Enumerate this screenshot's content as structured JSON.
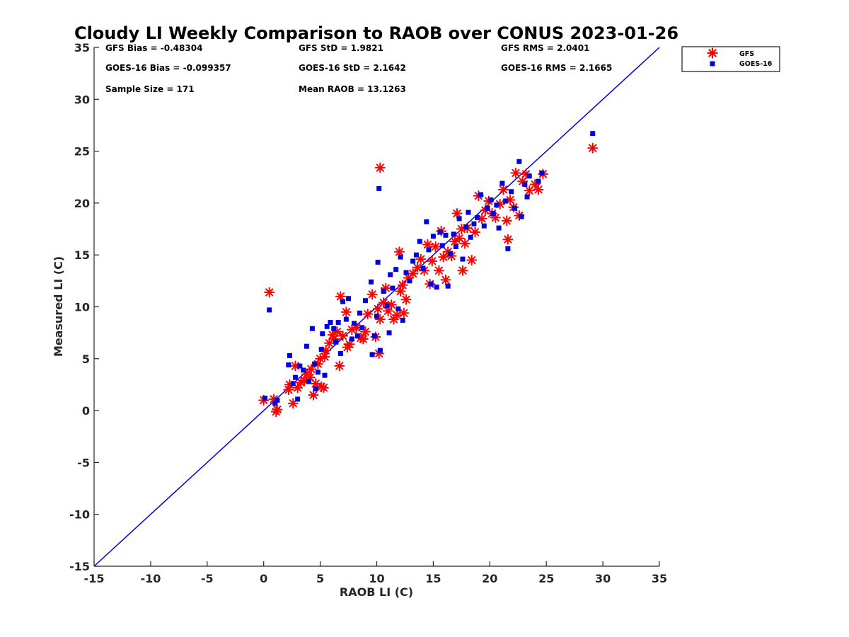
{
  "chart_data": {
    "type": "scatter",
    "title": "Cloudy LI Weekly Comparison to RAOB over CONUS 2023-01-26",
    "xlabel": "RAOB LI (C)",
    "ylabel": "Measured LI (C)",
    "xlim": [
      -15,
      35
    ],
    "ylim": [
      -15,
      35
    ],
    "xticks": [
      -15,
      -10,
      -5,
      0,
      5,
      10,
      15,
      20,
      25,
      30,
      35
    ],
    "yticks": [
      -15,
      -10,
      -5,
      0,
      5,
      10,
      15,
      20,
      25,
      30,
      35
    ],
    "xtick_labels": [
      "-15",
      "-10",
      "-5",
      "0",
      "5",
      "10",
      "15",
      "20",
      "25",
      "30",
      "35"
    ],
    "ytick_labels": [
      "-15",
      "-10",
      "-5",
      "0",
      "5",
      "10",
      "15",
      "20",
      "25",
      "30",
      "35"
    ],
    "grid": false,
    "legend_position": "top-right, outside plot area",
    "reference_line": {
      "type": "one-to-one",
      "color": "#0000dd"
    },
    "stats": [
      "GFS Bias = -0.48304",
      "GFS StD = 1.9821",
      "GFS RMS = 2.0401",
      "GOES-16 Bias = -0.099357",
      "GOES-16 StD = 2.1642",
      "GOES-16 RMS = 2.1665",
      "Sample Size = 171",
      "Mean RAOB = 13.1263"
    ],
    "series": [
      {
        "name": "GFS",
        "marker": "asterisk",
        "color": "#ff0000",
        "points": [
          [
            0.0,
            1.0
          ],
          [
            0.5,
            11.4
          ],
          [
            0.9,
            1.1
          ],
          [
            1.1,
            -0.1
          ],
          [
            1.2,
            0.1
          ],
          [
            2.2,
            2.0
          ],
          [
            2.3,
            2.5
          ],
          [
            2.6,
            0.7
          ],
          [
            2.8,
            4.3
          ],
          [
            3.0,
            2.2
          ],
          [
            3.3,
            2.7
          ],
          [
            3.6,
            2.9
          ],
          [
            3.8,
            3.5
          ],
          [
            4.1,
            3.2
          ],
          [
            4.2,
            4.0
          ],
          [
            4.4,
            1.5
          ],
          [
            4.6,
            2.6
          ],
          [
            4.8,
            4.5
          ],
          [
            5.0,
            5.0
          ],
          [
            5.1,
            2.3
          ],
          [
            5.3,
            2.2
          ],
          [
            5.4,
            5.2
          ],
          [
            5.5,
            5.8
          ],
          [
            5.8,
            6.5
          ],
          [
            6.1,
            7.3
          ],
          [
            6.2,
            6.9
          ],
          [
            6.5,
            7.6
          ],
          [
            6.7,
            4.3
          ],
          [
            6.8,
            11.0
          ],
          [
            7.0,
            7.2
          ],
          [
            7.3,
            9.5
          ],
          [
            7.4,
            6.1
          ],
          [
            7.6,
            6.4
          ],
          [
            7.8,
            7.8
          ],
          [
            8.2,
            8.0
          ],
          [
            8.6,
            7.0
          ],
          [
            8.8,
            6.9
          ],
          [
            9.0,
            7.6
          ],
          [
            9.2,
            9.3
          ],
          [
            9.6,
            11.2
          ],
          [
            9.9,
            7.1
          ],
          [
            10.1,
            9.8
          ],
          [
            10.2,
            5.5
          ],
          [
            10.3,
            8.8
          ],
          [
            10.3,
            23.4
          ],
          [
            10.6,
            10.4
          ],
          [
            10.8,
            11.8
          ],
          [
            11.0,
            9.6
          ],
          [
            11.3,
            10.2
          ],
          [
            11.5,
            8.8
          ],
          [
            11.8,
            9.2
          ],
          [
            12.0,
            15.3
          ],
          [
            12.1,
            11.5
          ],
          [
            12.3,
            12.1
          ],
          [
            12.4,
            9.4
          ],
          [
            12.6,
            10.7
          ],
          [
            12.8,
            12.8
          ],
          [
            13.2,
            13.2
          ],
          [
            13.6,
            13.8
          ],
          [
            13.9,
            14.6
          ],
          [
            14.2,
            13.5
          ],
          [
            14.5,
            16.0
          ],
          [
            14.7,
            12.2
          ],
          [
            14.9,
            14.4
          ],
          [
            15.2,
            15.8
          ],
          [
            15.5,
            13.5
          ],
          [
            15.7,
            17.3
          ],
          [
            15.9,
            14.8
          ],
          [
            16.1,
            12.6
          ],
          [
            16.3,
            15.3
          ],
          [
            16.6,
            14.9
          ],
          [
            16.9,
            16.3
          ],
          [
            17.1,
            19.0
          ],
          [
            17.3,
            16.6
          ],
          [
            17.5,
            17.5
          ],
          [
            17.6,
            13.5
          ],
          [
            17.8,
            16.1
          ],
          [
            18.0,
            17.6
          ],
          [
            18.4,
            14.5
          ],
          [
            18.7,
            17.2
          ],
          [
            19.0,
            20.7
          ],
          [
            19.3,
            18.5
          ],
          [
            19.6,
            19.3
          ],
          [
            19.9,
            20.2
          ],
          [
            20.2,
            19.0
          ],
          [
            20.5,
            18.6
          ],
          [
            20.9,
            19.9
          ],
          [
            21.2,
            21.3
          ],
          [
            21.5,
            18.3
          ],
          [
            21.6,
            16.5
          ],
          [
            21.8,
            20.3
          ],
          [
            22.1,
            19.6
          ],
          [
            22.3,
            22.9
          ],
          [
            22.6,
            18.8
          ],
          [
            22.9,
            22.1
          ],
          [
            23.2,
            22.8
          ],
          [
            23.5,
            21.2
          ],
          [
            24.0,
            21.8
          ],
          [
            24.3,
            21.3
          ],
          [
            24.7,
            22.8
          ],
          [
            29.1,
            25.3
          ]
        ]
      },
      {
        "name": "GOES-16",
        "marker": "square",
        "color": "#0000dd",
        "points": [
          [
            0.1,
            1.2
          ],
          [
            0.5,
            9.7
          ],
          [
            1.0,
            0.7
          ],
          [
            1.2,
            1.0
          ],
          [
            2.2,
            4.4
          ],
          [
            2.3,
            5.3
          ],
          [
            2.6,
            2.6
          ],
          [
            2.8,
            3.2
          ],
          [
            3.0,
            1.1
          ],
          [
            3.2,
            4.3
          ],
          [
            3.5,
            3.9
          ],
          [
            3.8,
            6.2
          ],
          [
            4.0,
            2.8
          ],
          [
            4.3,
            7.9
          ],
          [
            4.5,
            4.5
          ],
          [
            4.6,
            2.1
          ],
          [
            4.8,
            3.7
          ],
          [
            5.1,
            5.9
          ],
          [
            5.2,
            7.4
          ],
          [
            5.4,
            3.4
          ],
          [
            5.6,
            8.1
          ],
          [
            5.9,
            8.5
          ],
          [
            6.2,
            7.9
          ],
          [
            6.4,
            6.6
          ],
          [
            6.6,
            8.5
          ],
          [
            6.8,
            5.5
          ],
          [
            7.0,
            10.5
          ],
          [
            7.3,
            8.8
          ],
          [
            7.5,
            10.8
          ],
          [
            7.8,
            6.9
          ],
          [
            8.0,
            8.4
          ],
          [
            8.3,
            7.2
          ],
          [
            8.5,
            9.4
          ],
          [
            8.7,
            8.0
          ],
          [
            9.0,
            10.6
          ],
          [
            9.5,
            12.4
          ],
          [
            9.6,
            5.4
          ],
          [
            9.8,
            7.2
          ],
          [
            10.0,
            9.1
          ],
          [
            10.1,
            14.3
          ],
          [
            10.2,
            21.4
          ],
          [
            10.3,
            5.8
          ],
          [
            10.6,
            11.5
          ],
          [
            10.9,
            10.1
          ],
          [
            11.1,
            7.5
          ],
          [
            11.2,
            13.1
          ],
          [
            11.4,
            11.8
          ],
          [
            11.7,
            13.6
          ],
          [
            11.9,
            9.8
          ],
          [
            12.1,
            14.8
          ],
          [
            12.3,
            8.7
          ],
          [
            12.6,
            13.3
          ],
          [
            12.9,
            12.5
          ],
          [
            13.2,
            14.4
          ],
          [
            13.5,
            15.0
          ],
          [
            13.8,
            16.3
          ],
          [
            14.1,
            13.7
          ],
          [
            14.4,
            18.2
          ],
          [
            14.6,
            15.5
          ],
          [
            14.8,
            12.2
          ],
          [
            15.0,
            16.8
          ],
          [
            15.3,
            11.9
          ],
          [
            15.6,
            17.2
          ],
          [
            15.8,
            15.9
          ],
          [
            16.1,
            16.9
          ],
          [
            16.3,
            12.0
          ],
          [
            16.5,
            15.1
          ],
          [
            16.8,
            17.0
          ],
          [
            17.0,
            15.8
          ],
          [
            17.3,
            18.5
          ],
          [
            17.6,
            14.6
          ],
          [
            17.9,
            17.7
          ],
          [
            18.1,
            19.1
          ],
          [
            18.3,
            16.7
          ],
          [
            18.6,
            18.0
          ],
          [
            18.9,
            18.6
          ],
          [
            19.2,
            20.8
          ],
          [
            19.5,
            17.8
          ],
          [
            19.8,
            19.5
          ],
          [
            20.1,
            20.3
          ],
          [
            20.3,
            19.0
          ],
          [
            20.6,
            19.8
          ],
          [
            20.8,
            17.6
          ],
          [
            21.1,
            21.9
          ],
          [
            21.4,
            20.2
          ],
          [
            21.6,
            15.6
          ],
          [
            21.9,
            21.1
          ],
          [
            22.2,
            19.5
          ],
          [
            22.6,
            24.0
          ],
          [
            22.8,
            18.7
          ],
          [
            23.1,
            21.8
          ],
          [
            23.3,
            20.6
          ],
          [
            23.5,
            22.6
          ],
          [
            24.3,
            22.1
          ],
          [
            24.6,
            22.9
          ],
          [
            29.1,
            26.7
          ]
        ]
      }
    ]
  }
}
